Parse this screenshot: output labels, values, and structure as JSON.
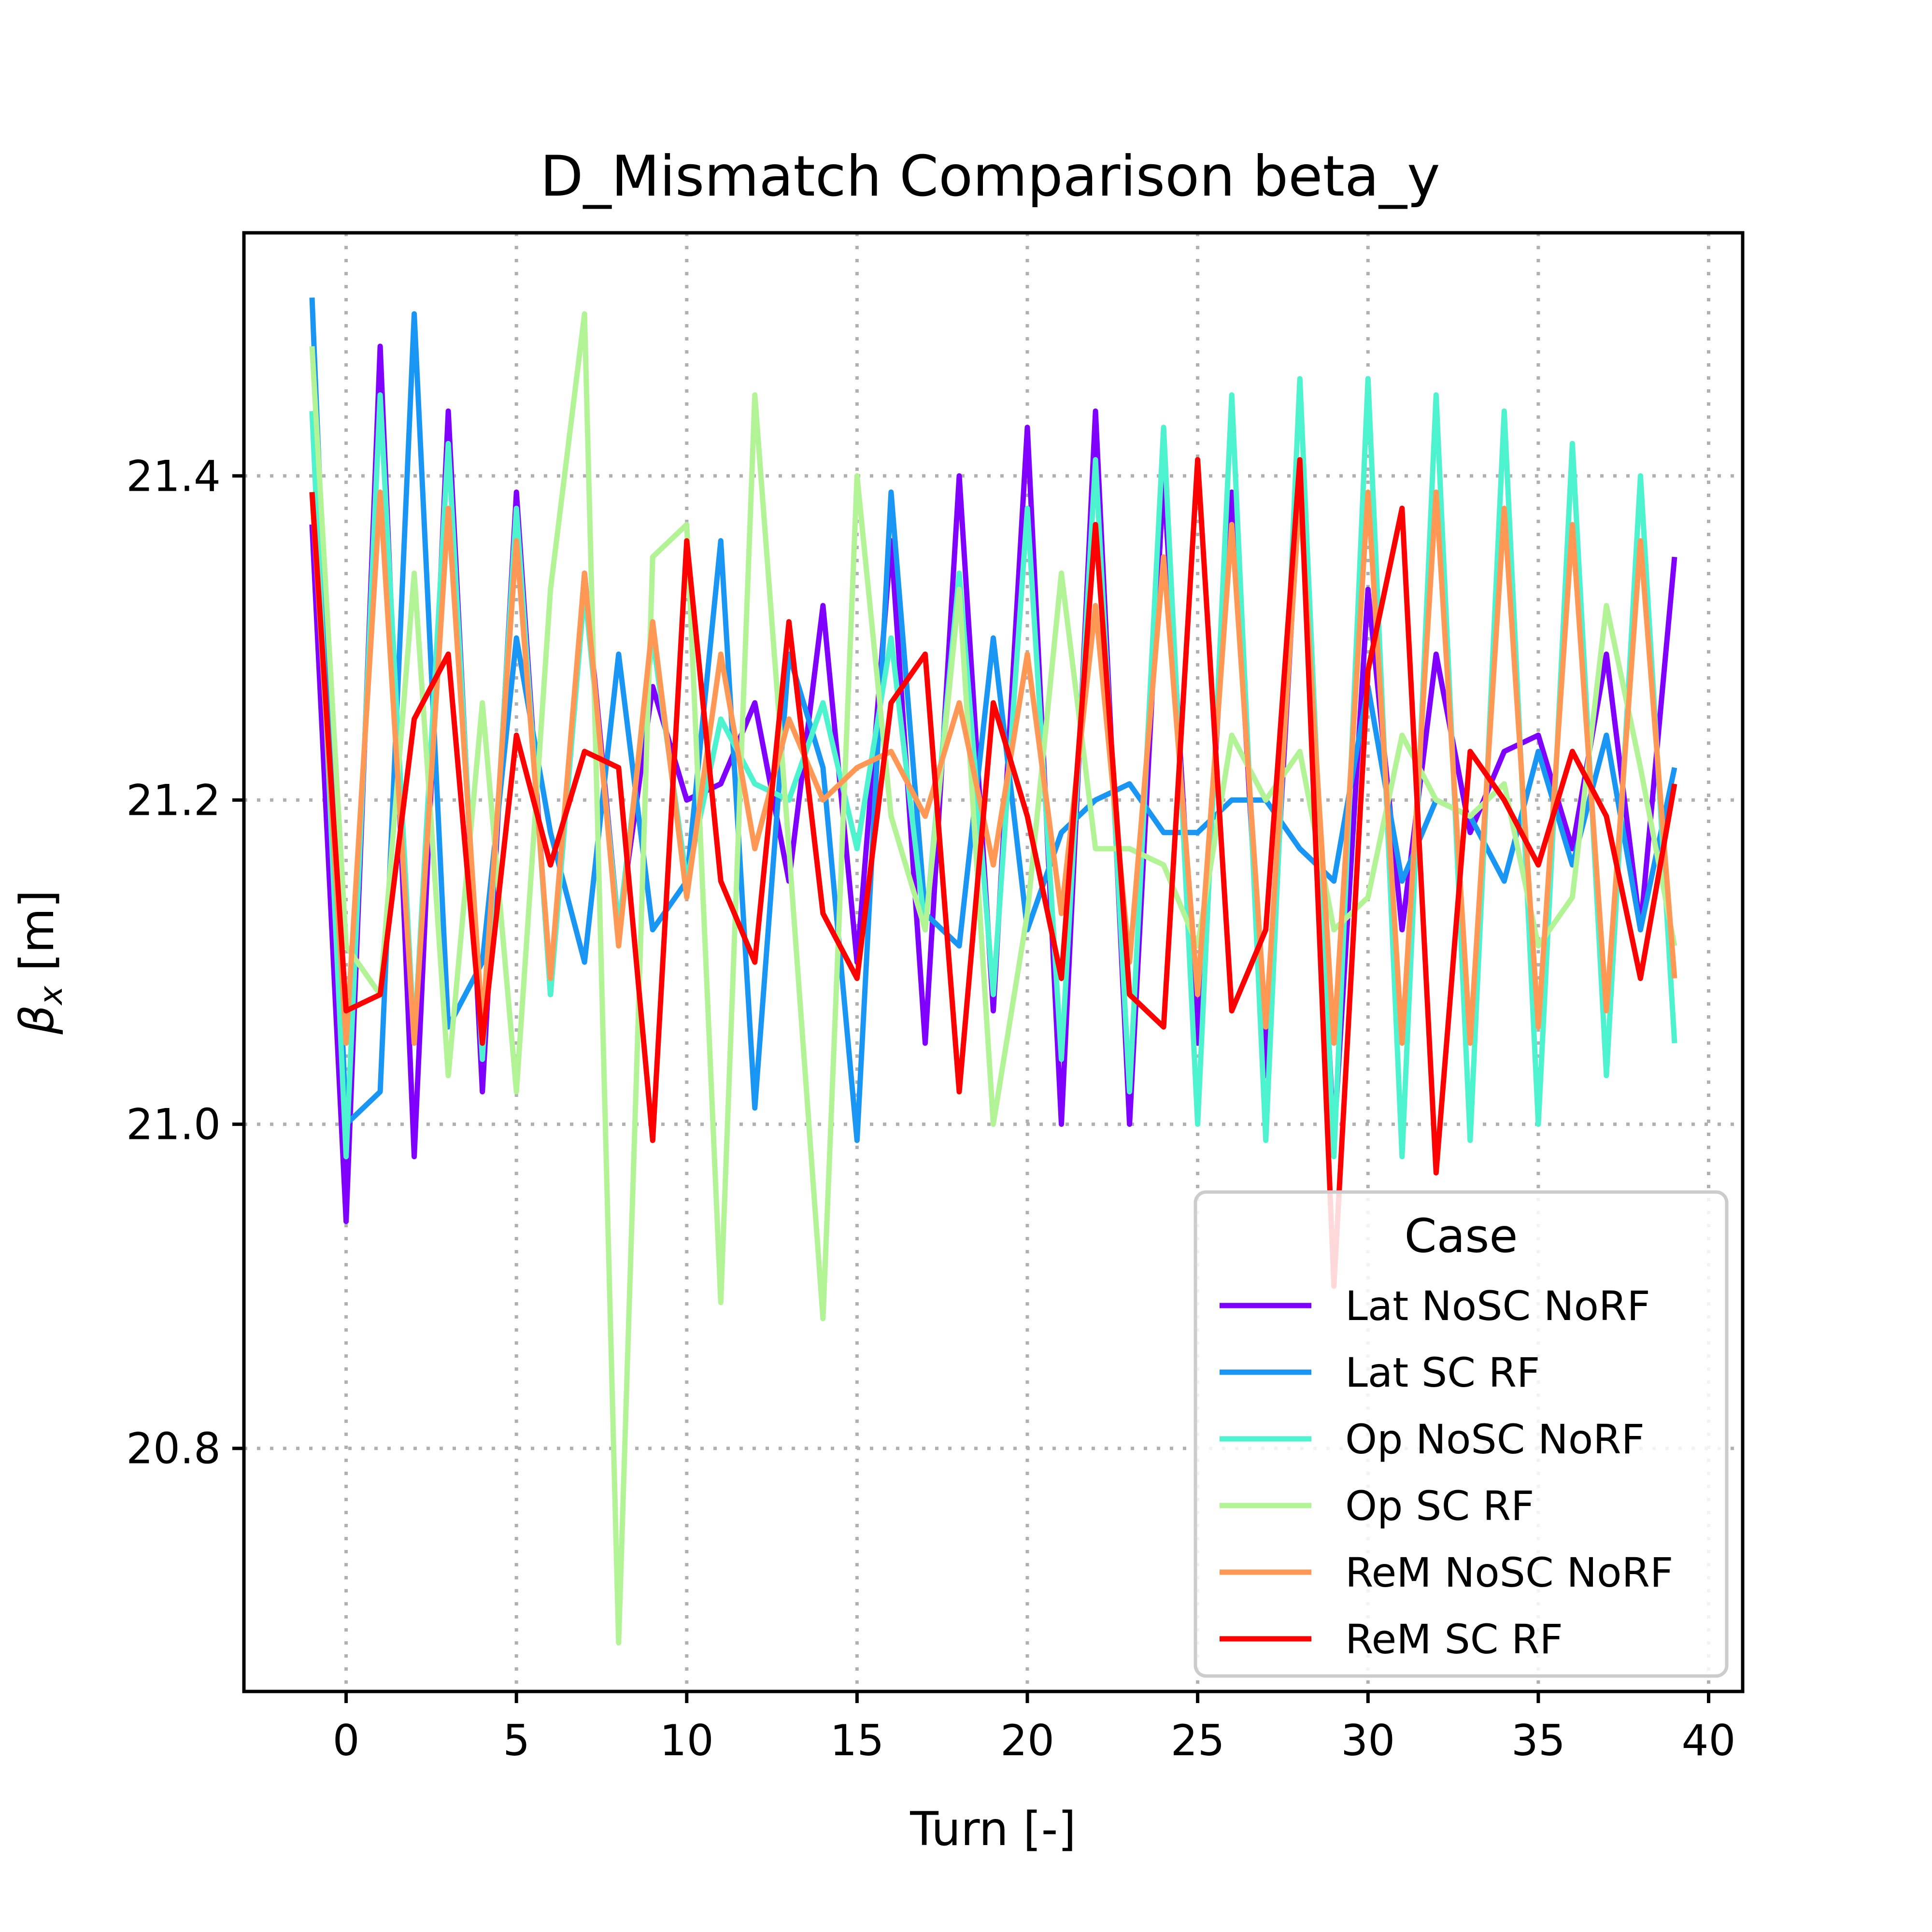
{
  "chart_data": {
    "type": "line",
    "title": "D_Mismatch Comparison beta_y",
    "xlabel": "Turn [-]",
    "ylabel_symbol": "β",
    "ylabel_subscript": "x",
    "ylabel_unit": " [m]",
    "xlim": [
      -3,
      41
    ],
    "ylim": [
      20.65,
      21.55
    ],
    "xticks": [
      0,
      5,
      10,
      15,
      20,
      25,
      30,
      35,
      40
    ],
    "yticks": [
      20.8,
      21.0,
      21.2,
      21.4
    ],
    "ytick_labels": [
      "20.8",
      "21.0",
      "21.2",
      "21.4"
    ],
    "grid": true,
    "legend": {
      "title": "Case",
      "placement": "lower-right"
    },
    "x": [
      -1,
      0,
      1,
      2,
      3,
      4,
      5,
      6,
      7,
      8,
      9,
      10,
      11,
      12,
      13,
      14,
      15,
      16,
      17,
      18,
      19,
      20,
      21,
      22,
      23,
      24,
      25,
      26,
      27,
      28,
      29,
      30,
      31,
      32,
      33,
      34,
      35,
      36,
      37,
      38,
      39
    ],
    "series": [
      {
        "name": "Lat NoSC NoRF",
        "color": "#8000ff",
        "values": [
          21.37,
          20.94,
          21.48,
          20.98,
          21.44,
          21.02,
          21.39,
          21.08,
          21.34,
          21.12,
          21.27,
          21.2,
          21.21,
          21.26,
          21.15,
          21.32,
          21.1,
          21.36,
          21.05,
          21.4,
          21.07,
          21.43,
          21.0,
          21.44,
          21.0,
          21.4,
          21.05,
          21.39,
          21.03,
          21.4,
          20.99,
          21.33,
          21.12,
          21.29,
          21.18,
          21.23,
          21.24,
          21.17,
          21.29,
          21.12,
          21.35
        ]
      },
      {
        "name": "Lat SC RF",
        "color": "#1996f3",
        "values": [
          21.51,
          21.0,
          21.02,
          21.5,
          21.06,
          21.1,
          21.3,
          21.18,
          21.1,
          21.29,
          21.12,
          21.15,
          21.36,
          21.01,
          21.29,
          21.22,
          20.99,
          21.39,
          21.13,
          21.11,
          21.3,
          21.12,
          21.18,
          21.2,
          21.21,
          21.18,
          21.18,
          21.2,
          21.2,
          21.17,
          21.15,
          21.27,
          21.15,
          21.2,
          21.19,
          21.15,
          21.23,
          21.16,
          21.24,
          21.12,
          21.22
        ]
      },
      {
        "name": "Op NoSC NoRF",
        "color": "#4df3ce",
        "values": [
          21.44,
          20.98,
          21.45,
          21.05,
          21.42,
          21.04,
          21.38,
          21.08,
          21.33,
          21.12,
          21.3,
          21.15,
          21.25,
          21.21,
          21.2,
          21.26,
          21.17,
          21.3,
          21.12,
          21.34,
          21.08,
          21.38,
          21.04,
          21.41,
          21.02,
          21.43,
          21.0,
          21.45,
          20.99,
          21.46,
          20.98,
          21.46,
          20.98,
          21.45,
          20.99,
          21.44,
          21.0,
          21.42,
          21.03,
          21.4,
          21.05
        ]
      },
      {
        "name": "Op SC RF",
        "color": "#b2f396",
        "values": [
          21.48,
          21.11,
          21.08,
          21.34,
          21.03,
          21.26,
          21.02,
          21.33,
          21.5,
          20.68,
          21.35,
          21.37,
          20.89,
          21.45,
          21.17,
          20.88,
          21.4,
          21.19,
          21.12,
          21.33,
          21.0,
          21.13,
          21.34,
          21.17,
          21.17,
          21.16,
          21.11,
          21.24,
          21.2,
          21.23,
          21.12,
          21.14,
          21.24,
          21.2,
          21.19,
          21.21,
          21.11,
          21.14,
          21.32,
          21.22,
          21.11
        ]
      },
      {
        "name": "ReM NoSC NoRF",
        "color": "#ff9855",
        "values": [
          21.39,
          21.05,
          21.39,
          21.05,
          21.38,
          21.06,
          21.36,
          21.09,
          21.34,
          21.11,
          21.31,
          21.14,
          21.29,
          21.17,
          21.25,
          21.2,
          21.22,
          21.23,
          21.19,
          21.26,
          21.16,
          21.29,
          21.13,
          21.32,
          21.1,
          21.35,
          21.08,
          21.37,
          21.06,
          21.39,
          21.05,
          21.39,
          21.05,
          21.39,
          21.05,
          21.38,
          21.06,
          21.37,
          21.07,
          21.36,
          21.09
        ]
      },
      {
        "name": "ReM SC RF",
        "color": "#ff0000",
        "values": [
          21.39,
          21.07,
          21.08,
          21.25,
          21.29,
          21.05,
          21.24,
          21.16,
          21.23,
          21.22,
          20.99,
          21.36,
          21.15,
          21.1,
          21.31,
          21.13,
          21.09,
          21.26,
          21.29,
          21.02,
          21.26,
          21.19,
          21.09,
          21.37,
          21.08,
          21.06,
          21.41,
          21.07,
          21.12,
          21.41,
          20.9,
          21.28,
          21.38,
          20.97,
          21.23,
          21.2,
          21.16,
          21.23,
          21.19,
          21.09,
          21.21
        ]
      }
    ]
  }
}
